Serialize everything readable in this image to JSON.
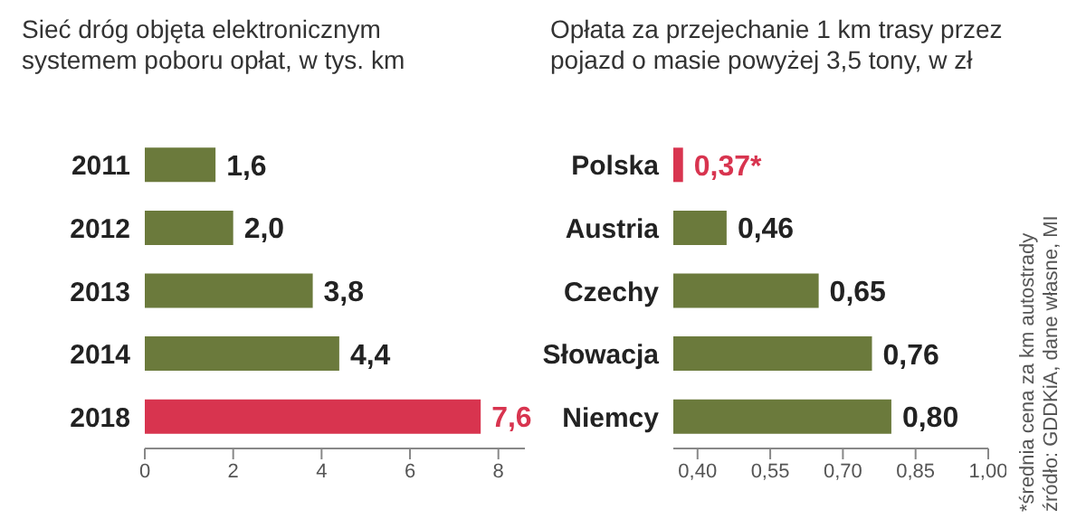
{
  "chart_data": [
    {
      "type": "bar",
      "orientation": "horizontal",
      "title": "Sieć dróg objęta elektronicznym systemem poboru opłat, w tys. km",
      "categories": [
        "2011",
        "2012",
        "2013",
        "2014",
        "2018"
      ],
      "values": [
        1.6,
        2.0,
        3.8,
        4.4,
        7.6
      ],
      "value_labels": [
        "1,6",
        "2,0",
        "3,8",
        "4,4",
        "7,6"
      ],
      "color": "#6b7a3c",
      "colors": [
        "#6b7a3c",
        "#6b7a3c",
        "#6b7a3c",
        "#6b7a3c",
        "#d8344f"
      ],
      "xlim": [
        0,
        8.6
      ],
      "xticks": [
        0,
        2,
        4,
        6,
        8
      ]
    },
    {
      "type": "bar",
      "orientation": "horizontal",
      "title": "Opłata za przejechanie 1 km trasy przez pojazd o masie powyżej 3,5 tony, w zł",
      "categories": [
        "Polska",
        "Austria",
        "Czechy",
        "Słowacja",
        "Niemcy"
      ],
      "values": [
        0.37,
        0.46,
        0.65,
        0.76,
        0.8
      ],
      "value_labels": [
        "0,37*",
        "0,46",
        "0,65",
        "0,76",
        "0,80"
      ],
      "color": "#6b7a3c",
      "colors": [
        "#d8344f",
        "#6b7a3c",
        "#6b7a3c",
        "#6b7a3c",
        "#6b7a3c"
      ],
      "xlim": [
        0.35,
        1.0
      ],
      "xticks": [
        {
          "value": 0.4,
          "label": "0,40"
        },
        {
          "value": 0.55,
          "label": "0,55"
        },
        {
          "value": 0.7,
          "label": "0,70"
        },
        {
          "value": 0.85,
          "label": "0,85"
        },
        {
          "value": 1.0,
          "label": "1,00"
        }
      ],
      "annotations": [
        "*średnia cena za km autostrady",
        "źródło: GDDKiA, dane własne, MI"
      ]
    }
  ]
}
